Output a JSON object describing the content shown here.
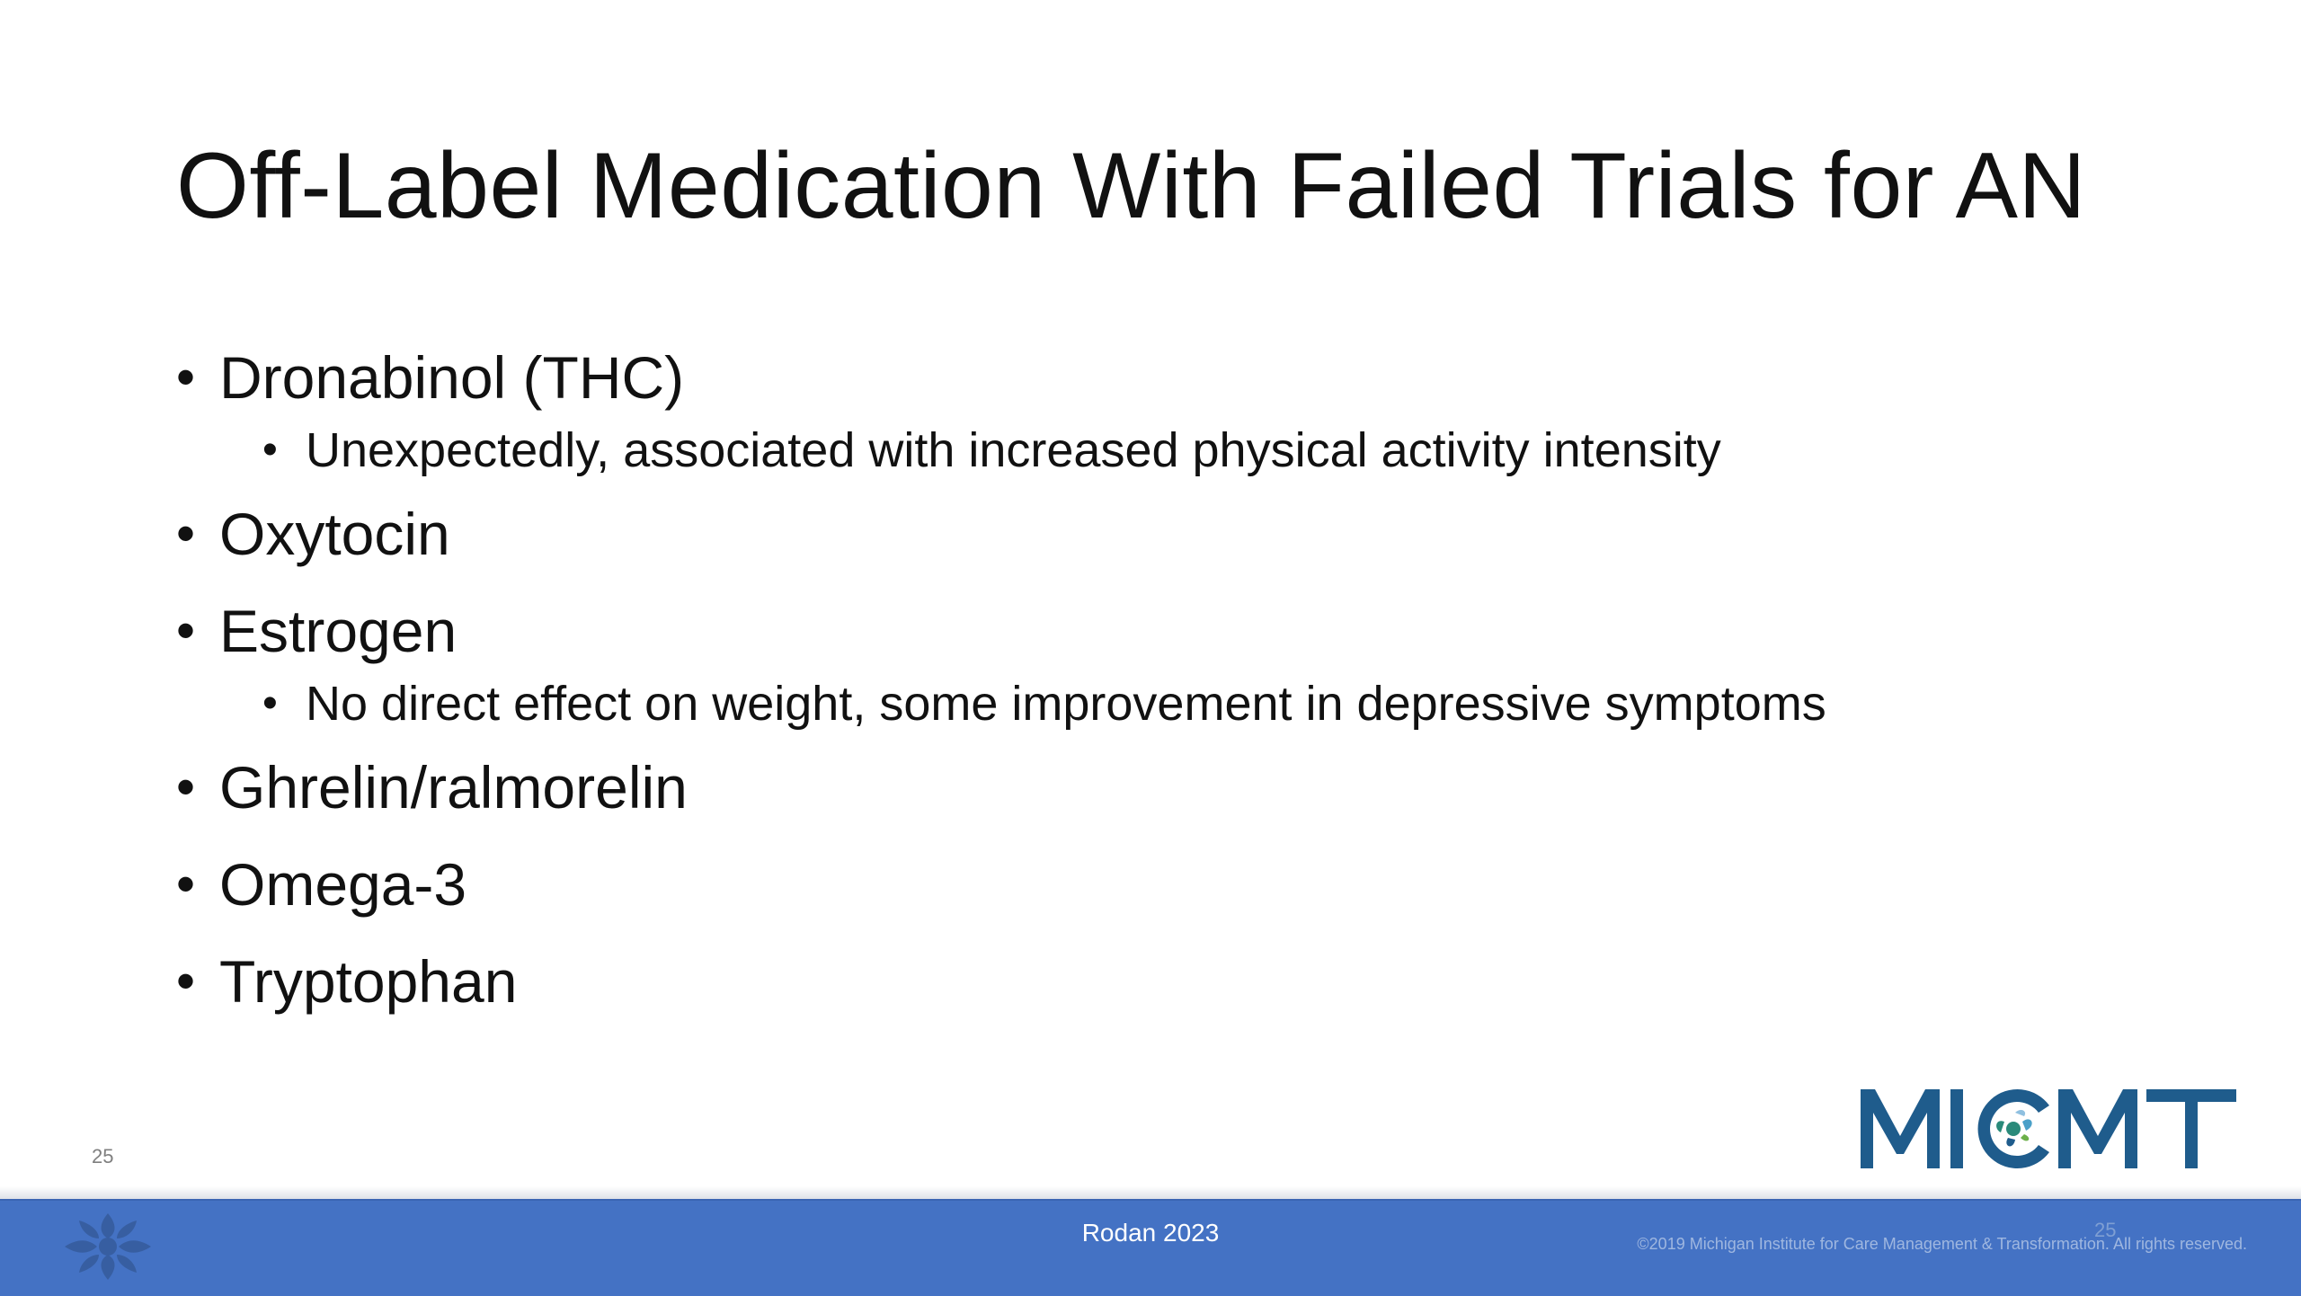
{
  "slide": {
    "title": "Off-Label Medication With Failed Trials for AN",
    "bullets": [
      {
        "text": "Dronabinol (THC)",
        "sub": [
          "Unexpectedly, associated with increased physical activity intensity"
        ]
      },
      {
        "text": "Oxytocin",
        "sub": []
      },
      {
        "text": "Estrogen",
        "sub": [
          "No direct effect on weight, some improvement in depressive symptoms"
        ]
      },
      {
        "text": "Ghrelin/ralmorelin",
        "sub": []
      },
      {
        "text": "Omega-3",
        "sub": []
      },
      {
        "text": "Tryptophan",
        "sub": []
      }
    ],
    "bullet_glyph": "•",
    "page_number": "25"
  },
  "logo": {
    "text": "MICMT",
    "color": "#1f5c8c",
    "accent": "#2a8a7a"
  },
  "footer": {
    "center_text": "Rodan 2023",
    "copyright": "©2019 Michigan Institute for Care Management & Transformation. All rights reserved.",
    "page_number": "25",
    "bar_color": "#4472c4",
    "icon": "micmt-emblem-icon"
  }
}
